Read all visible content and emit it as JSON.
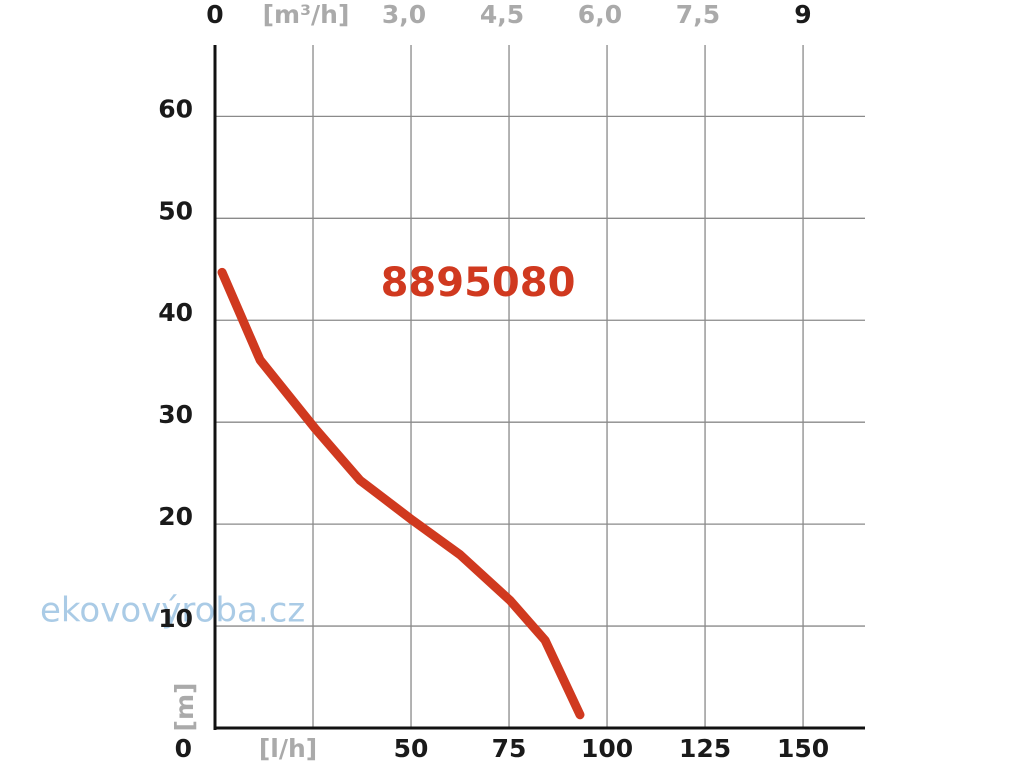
{
  "chart_data": {
    "type": "line",
    "ylabel": "[m]",
    "watermark": "ekovovýroba.cz",
    "x": [
      1.8,
      11.5,
      25.5,
      37,
      50.3,
      62.5,
      75.3,
      84.2,
      93.1
    ],
    "series": [
      {
        "name": "8895080",
        "color": "#d0391f",
        "values": [
          44.7,
          36.1,
          29.4,
          24.3,
          20.4,
          17,
          12.5,
          8.6,
          1.3
        ]
      }
    ],
    "xlim": [
      0,
      165.8
    ],
    "xticks": [
      {
        "value": 25,
        "label": "[l/h]"
      },
      50,
      75,
      100,
      125,
      150
    ],
    "x2lim": [
      0,
      9.95
    ],
    "x2ticks": [
      0,
      {
        "value": 1.5,
        "label": "[m³/h]"
      },
      {
        "value": 3,
        "label": "3,0"
      },
      {
        "value": 4.5,
        "label": "4,5"
      },
      {
        "value": 6,
        "label": "6,0"
      },
      {
        "value": 7.5,
        "label": "7,5"
      },
      9
    ],
    "ylim": [
      0,
      67
    ],
    "yticks": [
      0,
      10,
      20,
      30,
      40,
      50,
      60
    ],
    "grid": true
  }
}
